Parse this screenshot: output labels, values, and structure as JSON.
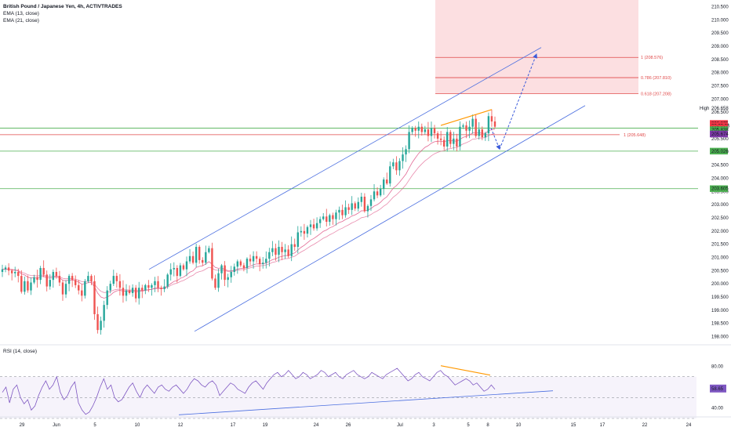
{
  "legend": {
    "symbol": "British Pound / Japanese Yen, 4h, ACTIVTRADES",
    "ema13": "EMA (13, close)",
    "ema21": "EMA (21, close)",
    "rsi": "RSI (14, close)"
  },
  "colors": {
    "up": "#26a69a",
    "down": "#ef5350",
    "channel": "#4a6ee0",
    "ema": "#e05a8a",
    "fib_zone": "#fcd9dc",
    "fib_line": "#e04848",
    "support": "#4caf50",
    "divergence": "#ff9800",
    "rsi_line": "#7e57c2"
  },
  "chart_data": [
    {
      "type": "candlestick",
      "title": "British Pound / Japanese Yen, 4h, ACTIVTRADES",
      "x_ticks": [
        "29",
        "Jun",
        "5",
        "10",
        "12",
        "17",
        "19",
        "24",
        "26",
        "Jul",
        "3",
        "5",
        "8",
        "10",
        "15",
        "17",
        "22",
        "24"
      ],
      "y_ticks": [
        "210.500",
        "210.000",
        "209.500",
        "209.000",
        "208.500",
        "208.000",
        "207.500",
        "207.000",
        "206.500",
        "206.000",
        "205.500",
        "205.000",
        "204.500",
        "204.000",
        "203.500",
        "203.000",
        "202.500",
        "202.000",
        "201.500",
        "201.000",
        "200.500",
        "200.000",
        "199.500",
        "199.000",
        "198.500",
        "198.000"
      ],
      "ylim": [
        197.75,
        210.75
      ],
      "closes": [
        200.55,
        200.62,
        200.5,
        200.4,
        200.45,
        200.3,
        199.7,
        200.1,
        199.75,
        200.05,
        200.25,
        200.15,
        200.6,
        200.35,
        199.9,
        200.15,
        200.45,
        200.3,
        200.05,
        199.6,
        200.0,
        200.3,
        200.15,
        199.95,
        199.75,
        199.55,
        200.1,
        200.3,
        200.1,
        198.85,
        198.25,
        198.6,
        199.2,
        199.75,
        200.0,
        200.3,
        200.1,
        199.85,
        199.55,
        199.75,
        199.65,
        199.85,
        199.45,
        199.85,
        199.75,
        199.95,
        199.85,
        199.95,
        200.1,
        199.85,
        199.8,
        199.9,
        200.35,
        200.55,
        200.6,
        200.3,
        200.7,
        200.55,
        200.85,
        201.05,
        200.8,
        201.4,
        200.9,
        200.8,
        201.2,
        201.35,
        200.2,
        199.85,
        200.4,
        200.7,
        200.15,
        200.25,
        200.45,
        200.65,
        200.85,
        200.7,
        200.6,
        200.95,
        200.85,
        201.05,
        200.95,
        200.75,
        200.8,
        200.95,
        201.2,
        201.35,
        201.1,
        201.4,
        201.2,
        201.3,
        201.05,
        201.5,
        201.4,
        201.95,
        202.0,
        201.9,
        202.15,
        202.25,
        202.1,
        202.3,
        202.45,
        202.55,
        202.35,
        202.6,
        202.45,
        202.7,
        202.8,
        202.6,
        202.9,
        202.8,
        203.05,
        202.85,
        203.1,
        203.3,
        202.75,
        202.95,
        203.2,
        203.5,
        203.35,
        203.6,
        203.95,
        203.8,
        204.45,
        204.6,
        204.3,
        204.65,
        204.9,
        205.1,
        205.75,
        205.9,
        205.8,
        205.95,
        205.75,
        205.85,
        205.6,
        205.9,
        205.7,
        205.5,
        205.45,
        205.2,
        205.75,
        205.3,
        205.5,
        205.2,
        205.95,
        206.0,
        205.8,
        205.95,
        206.25,
        205.6,
        205.85,
        205.55,
        205.7,
        206.35,
        206.15,
        205.95
      ],
      "ohlc_note": "candles approximate the visible 4h GBP/JPY bars",
      "series": [
        {
          "name": "EMA (13, close)"
        },
        {
          "name": "EMA (21, close)"
        }
      ],
      "horizontal_levels": [
        206.658,
        205.896,
        205.674,
        205.026,
        203.605
      ],
      "fibonacci": [
        {
          "label": "1 (208.576)",
          "value": 208.576
        },
        {
          "label": "0.786 (207.810)",
          "value": 207.81
        },
        {
          "label": "0.618 (207.208)",
          "value": 207.208
        },
        {
          "label": "1 (205.648)",
          "value": 205.648
        }
      ],
      "price_labels": [
        {
          "text": "206.658",
          "value": 206.658,
          "color": "#ffffff",
          "bg": "#ffffff",
          "fg": "#131722",
          "tag": "High"
        },
        {
          "text": "206.075",
          "value": 206.075,
          "bg": "#f23645",
          "fg": "#ffffff"
        },
        {
          "text": "03:03:06",
          "value": 205.99,
          "bg": "#f23645",
          "fg": "#ffffff"
        },
        {
          "text": "205.896",
          "value": 205.896,
          "bg": "#f23645",
          "fg": "#ffffff"
        },
        {
          "text": "205.838",
          "value": 205.838,
          "bg": "#4caf50",
          "fg": "#ffffff"
        },
        {
          "text": "205.674",
          "value": 205.674,
          "bg": "#7e3aa8",
          "fg": "#ffffff"
        },
        {
          "text": "205.026",
          "value": 205.026,
          "bg": "#4caf50",
          "fg": "#ffffff"
        },
        {
          "text": "203.605",
          "value": 203.605,
          "bg": "#4caf50",
          "fg": "#ffffff"
        }
      ]
    },
    {
      "type": "line",
      "title": "RSI (14, close)",
      "y_ticks": [
        "80.00",
        "40.00"
      ],
      "ylim": [
        33,
        84
      ],
      "levels": [
        70,
        50,
        30
      ],
      "current_value": "58.65",
      "values": [
        55,
        60,
        45,
        58,
        62,
        50,
        44,
        48,
        38,
        42,
        52,
        60,
        66,
        58,
        62,
        70,
        55,
        48,
        52,
        60,
        65,
        45,
        38,
        34,
        36,
        42,
        50,
        60,
        68,
        58,
        62,
        50,
        46,
        48,
        54,
        60,
        64,
        56,
        50,
        58,
        62,
        58,
        54,
        60,
        62,
        58,
        56,
        60,
        62,
        58,
        54,
        58,
        64,
        68,
        66,
        62,
        60,
        64,
        66,
        62,
        52,
        56,
        60,
        64,
        62,
        58,
        56,
        54,
        60,
        64,
        66,
        62,
        58,
        64,
        68,
        72,
        74,
        70,
        72,
        76,
        72,
        68,
        70,
        74,
        72,
        68,
        70,
        72,
        76,
        74,
        70,
        72,
        74,
        70,
        68,
        72,
        74,
        76,
        72,
        70,
        68,
        70,
        74,
        72,
        70,
        68,
        72,
        74,
        76,
        78,
        74,
        70,
        66,
        68,
        72,
        74,
        70,
        68,
        66,
        70,
        74,
        76,
        72,
        70,
        66,
        62,
        64,
        66,
        68,
        66,
        62,
        64,
        60,
        56,
        58,
        62,
        58
      ]
    }
  ]
}
